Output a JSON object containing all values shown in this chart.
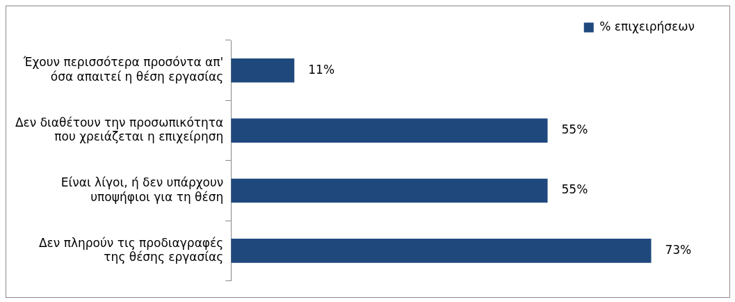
{
  "chart_data": {
    "type": "bar",
    "orientation": "horizontal",
    "categories": [
      "Έχουν περισσότερα προσόντα απ' όσα απαιτεί η θέση εργασίας",
      "Δεν διαθέτουν την προσωπικότητα που χρειάζεται η επιχείρηση",
      "Είναι λίγοι, ή δεν υπάρχουν υποψήφιοι για τη θέση",
      "Δεν πληρούν τις προδιαγραφές της θέσης εργασίας"
    ],
    "series": [
      {
        "name": "% επιχειρήσεων",
        "color": "#1f497d",
        "values": [
          11,
          55,
          55,
          73
        ],
        "value_labels": [
          "11%",
          "55%",
          "55%",
          "73%"
        ]
      }
    ],
    "legend": "top right",
    "grid": false
  }
}
